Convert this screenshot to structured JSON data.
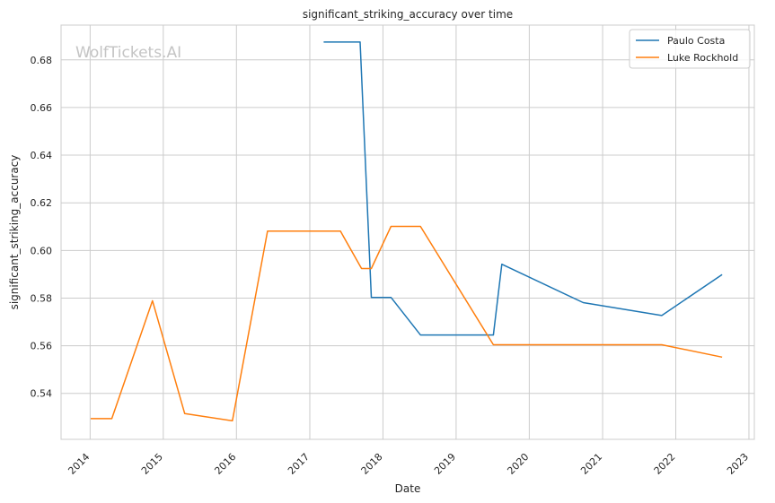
{
  "chart_data": {
    "type": "line",
    "title": "significant_striking_accuracy over time",
    "xlabel": "Date",
    "ylabel": "significant_striking_accuracy",
    "watermark": "WolfTickets.AI",
    "x_scale": "date",
    "xlim": [
      "2013-08-09",
      "2023-01-28"
    ],
    "ylim": [
      0.5207,
      0.6946
    ],
    "x_ticks": [
      "2014",
      "2015",
      "2016",
      "2017",
      "2018",
      "2019",
      "2020",
      "2021",
      "2022",
      "2023"
    ],
    "y_ticks": [
      "0.54",
      "0.56",
      "0.58",
      "0.60",
      "0.62",
      "0.64",
      "0.66",
      "0.68"
    ],
    "grid": true,
    "legend_position": "top-right",
    "series": [
      {
        "name": "Paulo Costa",
        "color": "#1f77b4",
        "points": [
          {
            "x": "2017-03-11",
            "y": 0.6875
          },
          {
            "x": "2017-09-09",
            "y": 0.6875
          },
          {
            "x": "2017-11-04",
            "y": 0.5803
          },
          {
            "x": "2018-02-10",
            "y": 0.5803
          },
          {
            "x": "2018-07-07",
            "y": 0.5645
          },
          {
            "x": "2019-07-06",
            "y": 0.5645
          },
          {
            "x": "2019-08-17",
            "y": 0.5942
          },
          {
            "x": "2020-09-26",
            "y": 0.5781
          },
          {
            "x": "2021-10-23",
            "y": 0.5727
          },
          {
            "x": "2022-08-20",
            "y": 0.5899
          }
        ]
      },
      {
        "name": "Luke Rockhold",
        "color": "#ff7f0e",
        "points": [
          {
            "x": "2014-01-04",
            "y": 0.5294
          },
          {
            "x": "2014-04-19",
            "y": 0.5294
          },
          {
            "x": "2014-11-08",
            "y": 0.5789
          },
          {
            "x": "2015-04-18",
            "y": 0.5315
          },
          {
            "x": "2015-12-12",
            "y": 0.5285
          },
          {
            "x": "2016-06-04",
            "y": 0.6081
          },
          {
            "x": "2017-06-03",
            "y": 0.6081
          },
          {
            "x": "2017-09-16",
            "y": 0.5924
          },
          {
            "x": "2017-11-04",
            "y": 0.5924
          },
          {
            "x": "2018-02-10",
            "y": 0.6101
          },
          {
            "x": "2018-07-07",
            "y": 0.6101
          },
          {
            "x": "2019-07-06",
            "y": 0.5604
          },
          {
            "x": "2021-10-23",
            "y": 0.5604
          },
          {
            "x": "2022-08-20",
            "y": 0.5552
          }
        ]
      }
    ]
  }
}
